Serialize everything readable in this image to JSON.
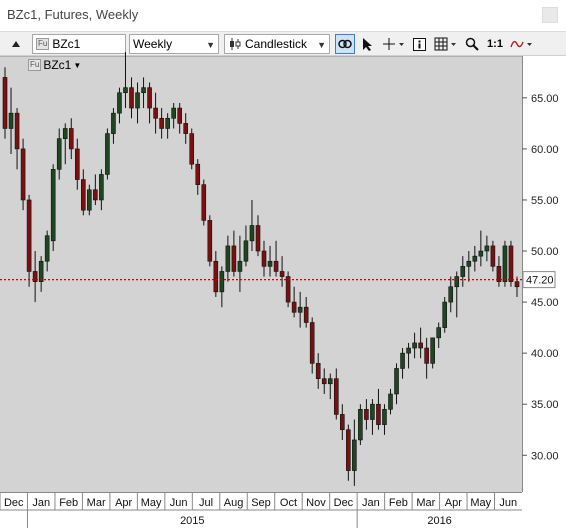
{
  "window": {
    "title": "BZc1, Futures, Weekly"
  },
  "toolbar": {
    "ric": "BZc1",
    "ric_badge": "Fu",
    "interval": "Weekly",
    "chart_type": "Candlestick",
    "ratio": "1:1"
  },
  "instrument": {
    "badge": "Fu",
    "label": "BZc1"
  },
  "chart_data": {
    "type": "candlestick",
    "instrument": "BZc1",
    "ylim": [
      26.5,
      69
    ],
    "y_ticks": [
      30,
      35,
      40,
      45,
      50,
      55,
      60,
      65
    ],
    "y_tick_labels": [
      "30.00",
      "35.00",
      "40.00",
      "45.00",
      "50.00",
      "55.00",
      "60.00",
      "65.00"
    ],
    "current_price": 47.2,
    "current_price_label": "47.20",
    "up_color": "#1e4620",
    "down_color": "#7a1010",
    "price_line_color": "#cc0000",
    "grid": false,
    "months": [
      "Dec",
      "Jan",
      "Feb",
      "Mar",
      "Apr",
      "May",
      "Jun",
      "Jul",
      "Aug",
      "Sep",
      "Oct",
      "Nov",
      "Dec",
      "Jan",
      "Feb",
      "Mar",
      "Apr",
      "May",
      "Jun"
    ],
    "years": [
      "2015",
      "2016"
    ],
    "candles": [
      [
        67.0,
        68.0,
        61.0,
        62.0
      ],
      [
        62.0,
        66.0,
        59.5,
        63.5
      ],
      [
        63.5,
        64.0,
        58.0,
        60.0
      ],
      [
        60.0,
        61.0,
        54.0,
        55.0
      ],
      [
        55.0,
        55.5,
        46.5,
        48.0
      ],
      [
        48.0,
        50.0,
        45.0,
        47.0
      ],
      [
        47.0,
        49.5,
        46.0,
        49.0
      ],
      [
        49.0,
        52.0,
        48.0,
        51.5
      ],
      [
        51.0,
        58.5,
        50.0,
        58.0
      ],
      [
        58.0,
        62.0,
        57.0,
        61.0
      ],
      [
        61.0,
        62.5,
        58.5,
        62.0
      ],
      [
        62.0,
        63.0,
        59.0,
        60.0
      ],
      [
        60.0,
        61.0,
        56.0,
        57.0
      ],
      [
        57.0,
        58.0,
        53.5,
        54.0
      ],
      [
        54.0,
        56.5,
        53.5,
        56.0
      ],
      [
        56.0,
        57.5,
        54.5,
        55.0
      ],
      [
        55.0,
        58.0,
        54.0,
        57.5
      ],
      [
        57.5,
        62.0,
        57.0,
        61.5
      ],
      [
        61.5,
        64.0,
        60.5,
        63.5
      ],
      [
        63.5,
        66.0,
        62.5,
        65.5
      ],
      [
        65.5,
        69.5,
        64.0,
        66.0
      ],
      [
        66.0,
        67.0,
        63.0,
        64.0
      ],
      [
        64.0,
        66.5,
        62.5,
        65.5
      ],
      [
        65.5,
        67.0,
        64.0,
        66.0
      ],
      [
        66.0,
        66.5,
        62.5,
        64.0
      ],
      [
        64.0,
        65.5,
        61.5,
        63.0
      ],
      [
        63.0,
        64.0,
        61.0,
        62.0
      ],
      [
        62.0,
        63.5,
        61.0,
        63.0
      ],
      [
        63.0,
        64.5,
        62.0,
        64.0
      ],
      [
        64.0,
        64.5,
        61.5,
        62.5
      ],
      [
        62.5,
        63.5,
        60.5,
        61.5
      ],
      [
        61.5,
        62.0,
        58.0,
        58.5
      ],
      [
        58.5,
        59.0,
        55.5,
        56.5
      ],
      [
        56.5,
        57.0,
        52.5,
        53.0
      ],
      [
        53.0,
        53.5,
        48.5,
        49.0
      ],
      [
        49.0,
        50.0,
        45.5,
        46.0
      ],
      [
        46.0,
        48.5,
        44.5,
        48.0
      ],
      [
        48.0,
        51.5,
        47.0,
        50.5
      ],
      [
        50.5,
        52.0,
        47.5,
        48.0
      ],
      [
        48.0,
        51.5,
        46.0,
        49.0
      ],
      [
        49.0,
        52.5,
        48.5,
        51.0
      ],
      [
        51.0,
        55.0,
        50.0,
        52.5
      ],
      [
        52.5,
        53.5,
        49.5,
        50.0
      ],
      [
        50.0,
        51.0,
        47.5,
        48.5
      ],
      [
        48.5,
        50.5,
        47.5,
        49.0
      ],
      [
        49.0,
        51.0,
        47.5,
        48.0
      ],
      [
        48.0,
        49.5,
        46.5,
        47.5
      ],
      [
        47.5,
        48.0,
        44.5,
        45.0
      ],
      [
        45.0,
        46.5,
        43.5,
        44.0
      ],
      [
        44.0,
        46.0,
        42.5,
        44.5
      ],
      [
        44.5,
        45.5,
        42.5,
        43.0
      ],
      [
        43.0,
        43.5,
        38.0,
        39.0
      ],
      [
        39.0,
        40.0,
        36.5,
        37.5
      ],
      [
        37.5,
        38.5,
        36.0,
        37.0
      ],
      [
        37.0,
        38.0,
        35.5,
        37.5
      ],
      [
        37.5,
        38.5,
        33.5,
        34.0
      ],
      [
        34.0,
        35.0,
        31.5,
        32.5
      ],
      [
        32.5,
        33.0,
        27.5,
        28.5
      ],
      [
        28.5,
        33.5,
        27.0,
        31.5
      ],
      [
        31.5,
        35.0,
        31.0,
        34.5
      ],
      [
        34.5,
        35.5,
        32.5,
        33.5
      ],
      [
        33.5,
        35.5,
        32.0,
        35.0
      ],
      [
        35.0,
        36.5,
        32.5,
        33.0
      ],
      [
        33.0,
        35.0,
        32.0,
        34.5
      ],
      [
        34.5,
        36.5,
        34.0,
        36.0
      ],
      [
        36.0,
        39.0,
        35.0,
        38.5
      ],
      [
        38.5,
        40.5,
        37.5,
        40.0
      ],
      [
        40.0,
        41.0,
        38.5,
        40.5
      ],
      [
        40.5,
        42.0,
        39.5,
        41.0
      ],
      [
        41.0,
        42.5,
        39.5,
        40.5
      ],
      [
        40.5,
        41.5,
        37.5,
        39.0
      ],
      [
        39.0,
        41.5,
        38.5,
        41.5
      ],
      [
        41.5,
        43.0,
        40.5,
        42.5
      ],
      [
        42.5,
        45.5,
        42.0,
        45.0
      ],
      [
        45.0,
        47.5,
        44.0,
        46.5
      ],
      [
        46.5,
        48.0,
        43.5,
        47.5
      ],
      [
        47.5,
        49.5,
        46.5,
        48.5
      ],
      [
        48.5,
        50.0,
        47.0,
        49.0
      ],
      [
        49.0,
        50.5,
        48.0,
        49.5
      ],
      [
        49.5,
        52.0,
        48.5,
        50.0
      ],
      [
        50.0,
        51.5,
        49.0,
        50.5
      ],
      [
        50.5,
        51.0,
        48.0,
        48.5
      ],
      [
        48.5,
        49.5,
        46.5,
        47.0
      ],
      [
        47.0,
        51.0,
        46.5,
        50.5
      ],
      [
        50.5,
        51.0,
        46.5,
        47.0
      ],
      [
        47.0,
        47.5,
        45.5,
        46.5
      ]
    ]
  }
}
